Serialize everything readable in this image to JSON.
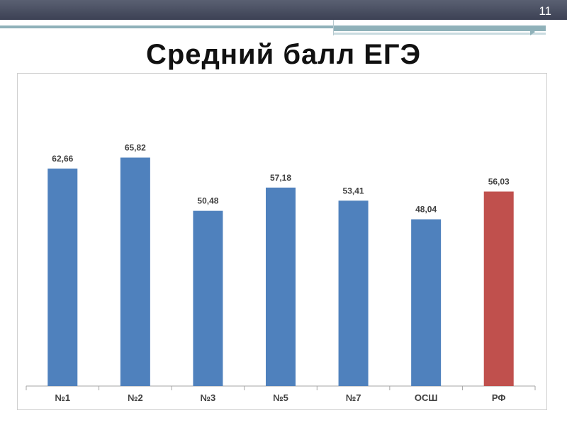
{
  "slide": {
    "number": "11",
    "title": "Средний балл ЕГЭ"
  },
  "colors": {
    "band": "#4a4f61",
    "accent_teal": "#8fb1b9",
    "bar_default": "#4f81bd",
    "bar_highlight": "#c0504d",
    "axis": "#a6a6a6"
  },
  "chart_data": {
    "type": "bar",
    "title": "Средний балл ЕГЭ",
    "categories": [
      "№1",
      "№2",
      "№3",
      "№5",
      "№7",
      "ОСШ",
      "РФ"
    ],
    "values": [
      62.66,
      65.82,
      50.48,
      57.18,
      53.41,
      48.04,
      56.03
    ],
    "value_labels": [
      "62,66",
      "65,82",
      "50,48",
      "57,18",
      "53,41",
      "48,04",
      "56,03"
    ],
    "highlight": "РФ",
    "ylim": [
      0,
      70
    ],
    "grid": false,
    "legend": "none"
  }
}
